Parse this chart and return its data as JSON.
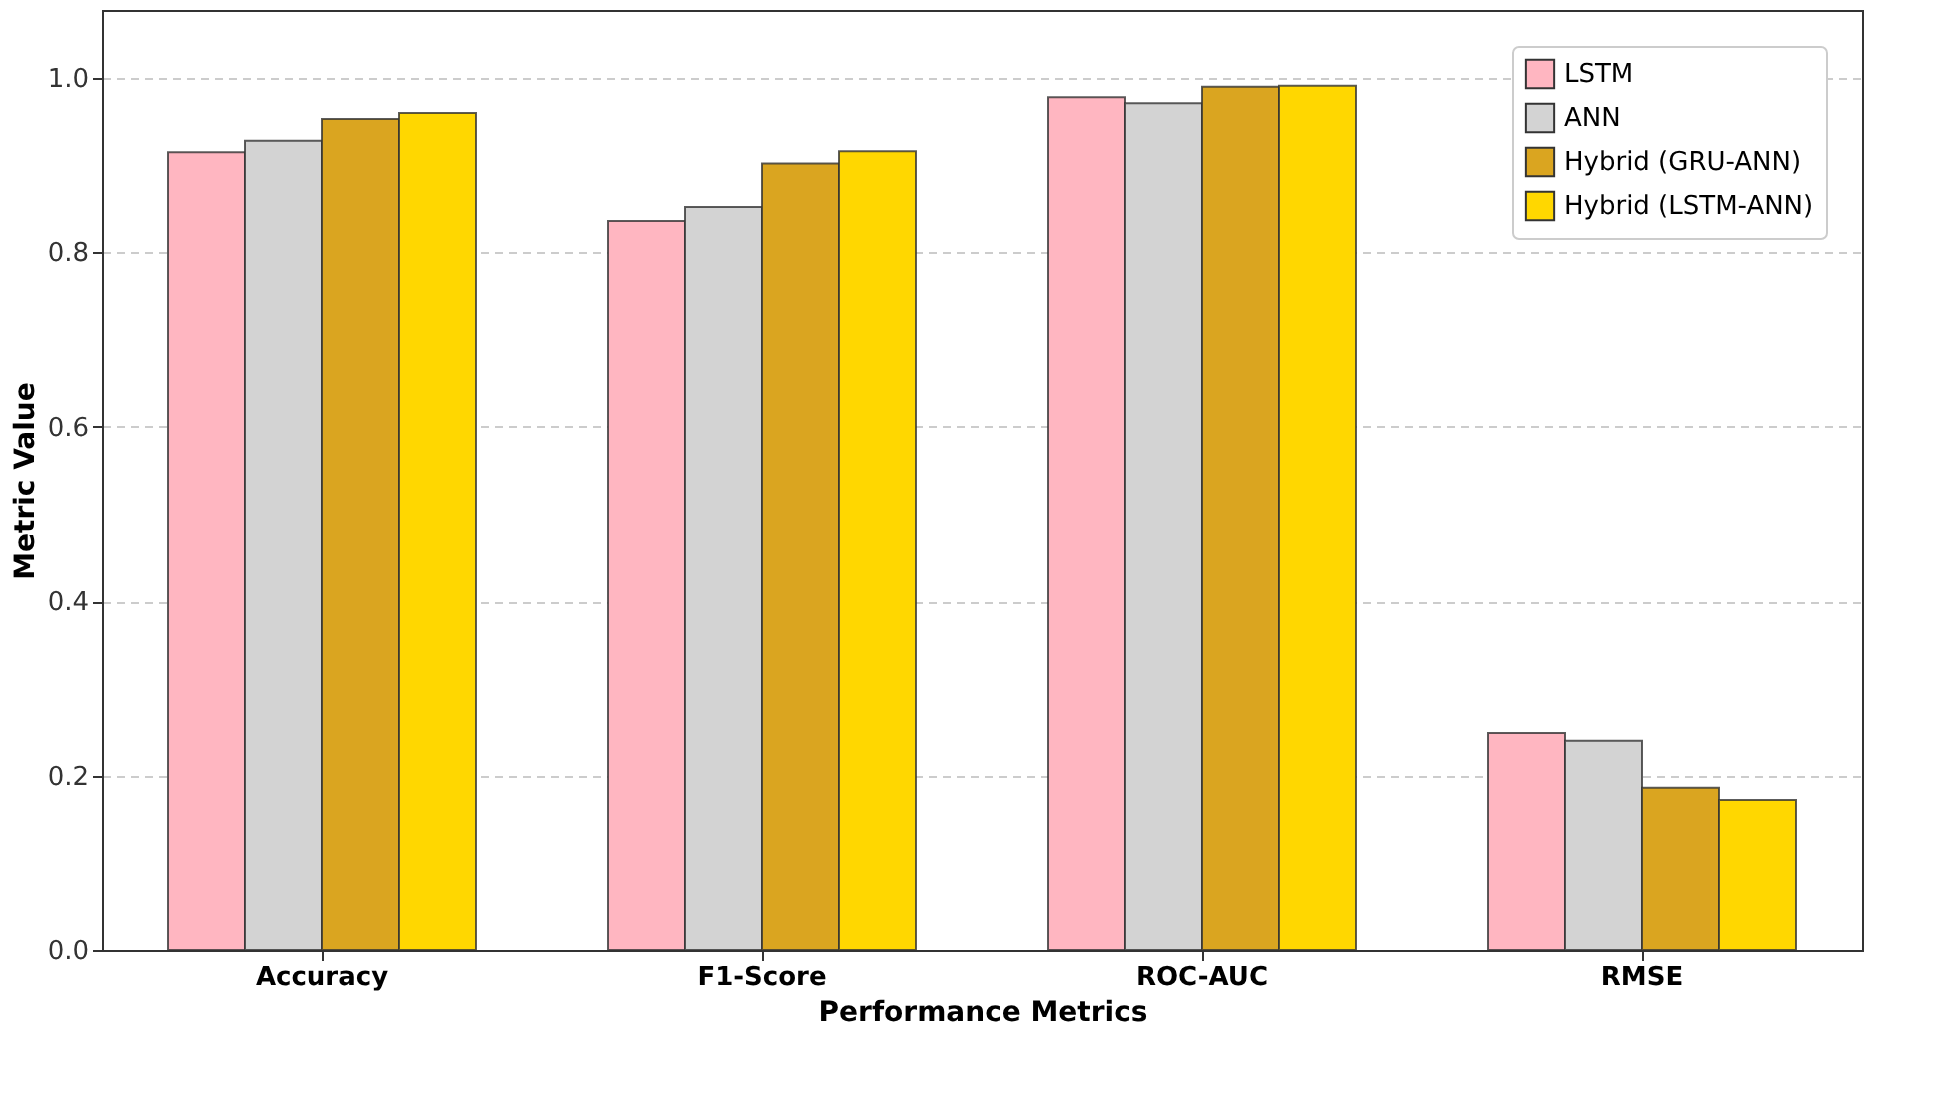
{
  "chart_data": {
    "type": "bar",
    "xlabel": "Performance Metrics",
    "ylabel": "Metric Value",
    "categories": [
      "Accuracy",
      "F1-Score",
      "ROC-AUC",
      "RMSE"
    ],
    "series": [
      {
        "name": "LSTM",
        "color": "#ffb6c1",
        "values": [
          0.915,
          0.836,
          0.978,
          0.249
        ]
      },
      {
        "name": "ANN",
        "color": "#d3d3d3",
        "values": [
          0.928,
          0.852,
          0.971,
          0.24
        ]
      },
      {
        "name": "Hybrid (GRU-ANN)",
        "color": "#daa520",
        "values": [
          0.953,
          0.902,
          0.99,
          0.186
        ]
      },
      {
        "name": "Hybrid (LSTM-ANN)",
        "color": "#ffd700",
        "values": [
          0.96,
          0.916,
          0.991,
          0.172
        ]
      }
    ],
    "ylim": [
      0,
      1.078
    ],
    "yticks": [
      {
        "value": 0,
        "label": "0.0"
      },
      0.2,
      0.4,
      0.6,
      0.8,
      {
        "value": 1,
        "label": "1.0"
      }
    ],
    "grid": "y",
    "legend": "top right"
  }
}
